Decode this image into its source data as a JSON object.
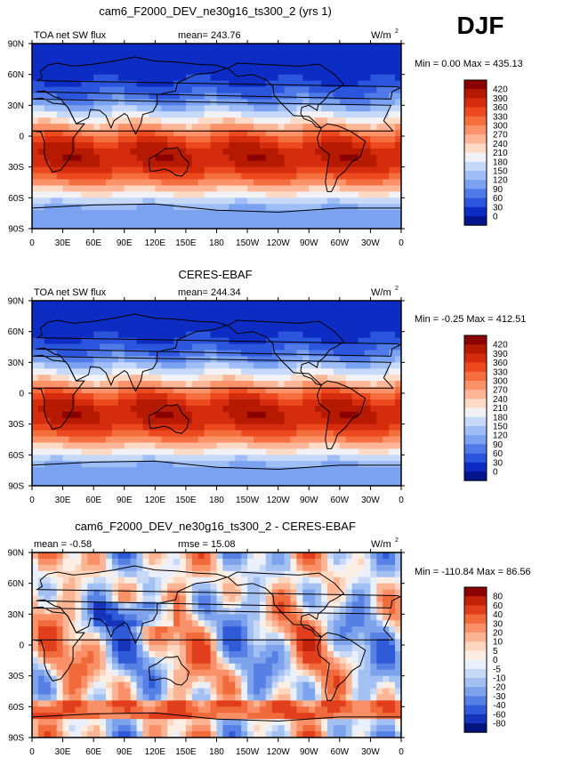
{
  "season": "DJF",
  "chart_data": [
    {
      "type": "heatmap",
      "title": "cam6_F2000_DEV_ne30g16_ts300_2 (yrs 1)",
      "left_label": "TOA net SW flux",
      "mid_label": "mean= 243.76",
      "units": "W/m",
      "units_sup": "2",
      "min_max": "Min =    0.00 Max = 435.13",
      "x_ticks": [
        "0",
        "30E",
        "60E",
        "90E",
        "120E",
        "150E",
        "180",
        "150W",
        "120W",
        "90W",
        "60W",
        "30W",
        "0"
      ],
      "y_ticks": [
        "90N",
        "60N",
        "30N",
        "0",
        "30S",
        "60S",
        "90S"
      ],
      "xlim": [
        0,
        360
      ],
      "ylim": [
        -90,
        90
      ],
      "colorbar_levels": [
        "420",
        "390",
        "360",
        "330",
        "300",
        "270",
        "240",
        "210",
        "180",
        "150",
        "120",
        "90",
        "60",
        "30",
        "0"
      ],
      "colorbar_colors": [
        "#8b0000",
        "#b51a00",
        "#d62c0e",
        "#ec4a1e",
        "#f56e3e",
        "#fb926a",
        "#fdb698",
        "#fddbc7",
        "#f2f2f6",
        "#c6d9f8",
        "#9ebef5",
        "#7aa2f0",
        "#4f7ae8",
        "#2a55dc",
        "#0d2cc4",
        "#00148c"
      ]
    },
    {
      "type": "heatmap",
      "title": "CERES-EBAF",
      "left_label": "TOA net SW flux",
      "mid_label": "mean= 244.34",
      "units": "W/m",
      "units_sup": "2",
      "min_max": "Min =  -0.25 Max = 412.51",
      "x_ticks": [
        "0",
        "30E",
        "60E",
        "90E",
        "120E",
        "150E",
        "180",
        "150W",
        "120W",
        "90W",
        "60W",
        "30W",
        "0"
      ],
      "y_ticks": [
        "90N",
        "60N",
        "30N",
        "0",
        "30S",
        "60S",
        "90S"
      ],
      "xlim": [
        0,
        360
      ],
      "ylim": [
        -90,
        90
      ],
      "colorbar_levels": [
        "420",
        "390",
        "360",
        "330",
        "300",
        "270",
        "240",
        "210",
        "180",
        "150",
        "120",
        "90",
        "60",
        "30",
        "0"
      ],
      "colorbar_colors": [
        "#8b0000",
        "#b51a00",
        "#d62c0e",
        "#ec4a1e",
        "#f56e3e",
        "#fb926a",
        "#fdb698",
        "#fddbc7",
        "#f2f2f6",
        "#c6d9f8",
        "#9ebef5",
        "#7aa2f0",
        "#4f7ae8",
        "#2a55dc",
        "#0d2cc4",
        "#00148c"
      ]
    },
    {
      "type": "heatmap",
      "title": "cam6_F2000_DEV_ne30g16_ts300_2 - CERES-EBAF",
      "left_label": "mean =  -0.58",
      "mid_label": "rmse =  15.08",
      "units": "W/m",
      "units_sup": "2",
      "min_max": "Min = -110.84 Max =  86.56",
      "x_ticks": [
        "0",
        "30E",
        "60E",
        "90E",
        "120E",
        "150E",
        "180",
        "150W",
        "120W",
        "90W",
        "60W",
        "30W",
        "0"
      ],
      "y_ticks": [
        "90N",
        "60N",
        "30N",
        "0",
        "30S",
        "60S",
        "90S"
      ],
      "xlim": [
        0,
        360
      ],
      "ylim": [
        -90,
        90
      ],
      "colorbar_levels": [
        "80",
        "60",
        "40",
        "30",
        "20",
        "10",
        "5",
        "0",
        "-5",
        "-10",
        "-20",
        "-30",
        "-40",
        "-60",
        "-80"
      ],
      "colorbar_colors": [
        "#8b0000",
        "#c0220a",
        "#e03e1c",
        "#f16a3c",
        "#f99068",
        "#fcb594",
        "#fdd6bf",
        "#fdeee4",
        "#e9f0fb",
        "#c7d9f7",
        "#a2c0f2",
        "#7da3ec",
        "#5680e4",
        "#2f5bd8",
        "#1434bb",
        "#00137e"
      ]
    }
  ]
}
